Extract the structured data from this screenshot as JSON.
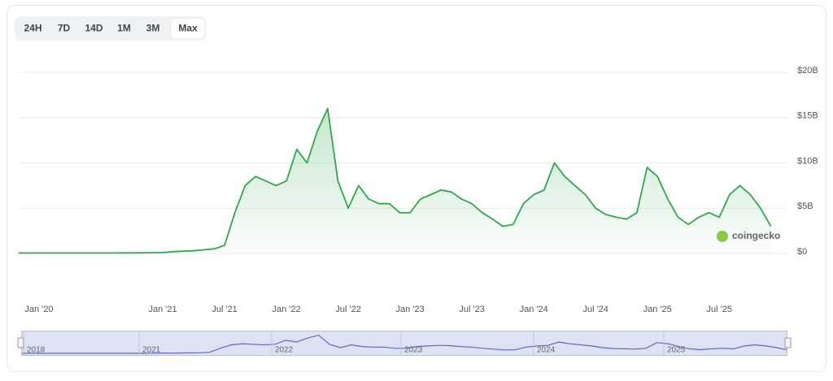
{
  "range_buttons": {
    "labels": [
      "24H",
      "7D",
      "14D",
      "1M",
      "3M",
      "Max"
    ],
    "active": "Max"
  },
  "watermark": "coingecko",
  "navigator": {
    "labels": [
      "2018",
      "2021",
      "2022",
      "2023",
      "2024",
      "2025"
    ]
  },
  "chart_data": {
    "type": "area",
    "x": [
      "2019-11",
      "2019-12",
      "2020-01",
      "2020-02",
      "2020-03",
      "2020-04",
      "2020-05",
      "2020-06",
      "2020-07",
      "2020-08",
      "2020-09",
      "2020-10",
      "2020-11",
      "2020-12",
      "2021-01",
      "2021-02",
      "2021-03",
      "2021-04",
      "2021-05",
      "2021-06",
      "2021-07",
      "2021-08",
      "2021-09",
      "2021-10",
      "2021-11",
      "2021-12",
      "2022-01",
      "2022-02",
      "2022-03",
      "2022-04",
      "2022-05",
      "2022-06",
      "2022-07",
      "2022-08",
      "2022-09",
      "2022-10",
      "2022-11",
      "2022-12",
      "2023-01",
      "2023-02",
      "2023-03",
      "2023-04",
      "2023-05",
      "2023-06",
      "2023-07",
      "2023-08",
      "2023-09",
      "2023-10",
      "2023-11",
      "2023-12",
      "2024-01",
      "2024-02",
      "2024-03",
      "2024-04",
      "2024-05",
      "2024-06",
      "2024-07",
      "2024-08",
      "2024-09",
      "2024-10",
      "2024-11",
      "2024-12",
      "2025-01",
      "2025-02",
      "2025-03",
      "2025-04",
      "2025-05",
      "2025-06",
      "2025-07",
      "2025-08",
      "2025-09",
      "2025-10",
      "2025-11",
      "2025-12"
    ],
    "series": [
      {
        "color": "#2fa84a",
        "values": [
          0.05,
          0.05,
          0.05,
          0.05,
          0.05,
          0.05,
          0.05,
          0.05,
          0.05,
          0.05,
          0.06,
          0.06,
          0.07,
          0.08,
          0.1,
          0.2,
          0.25,
          0.3,
          0.4,
          0.5,
          0.9,
          4.5,
          7.5,
          8.5,
          8.0,
          7.5,
          8.0,
          11.5,
          10.0,
          13.5,
          16.0,
          8.0,
          5.0,
          7.5,
          6.0,
          5.5,
          5.5,
          4.5,
          4.5,
          6.0,
          6.5,
          7.0,
          6.8,
          6.0,
          5.5,
          4.5,
          3.8,
          3.0,
          3.2,
          5.5,
          6.5,
          7.0,
          10.0,
          8.5,
          7.5,
          6.5,
          5.0,
          4.3,
          4.0,
          3.8,
          4.5,
          9.5,
          8.5,
          6.0,
          4.0,
          3.2,
          4.0,
          4.5,
          4.0,
          6.5,
          7.5,
          6.5,
          5.0,
          3.0
        ]
      }
    ],
    "ylim": [
      0,
      20
    ],
    "yticks": [
      {
        "value": 0,
        "label": "$0"
      },
      {
        "value": 5,
        "label": "$5B"
      },
      {
        "value": 10,
        "label": "$10B"
      },
      {
        "value": 15,
        "label": "$15B"
      },
      {
        "value": 20,
        "label": "$20B"
      }
    ],
    "xticks": [
      {
        "value": "2020-01",
        "label": "Jan '20"
      },
      {
        "value": "2021-01",
        "label": "Jan '21"
      },
      {
        "value": "2021-07",
        "label": "Jul '21"
      },
      {
        "value": "2022-01",
        "label": "Jan '22"
      },
      {
        "value": "2022-07",
        "label": "Jul '22"
      },
      {
        "value": "2023-01",
        "label": "Jan '23"
      },
      {
        "value": "2023-07",
        "label": "Jul '23"
      },
      {
        "value": "2024-01",
        "label": "Jan '24"
      },
      {
        "value": "2024-07",
        "label": "Jul '24"
      },
      {
        "value": "2025-01",
        "label": "Jan '25"
      },
      {
        "value": "2025-07",
        "label": "Jul '25"
      }
    ],
    "grid": true
  }
}
